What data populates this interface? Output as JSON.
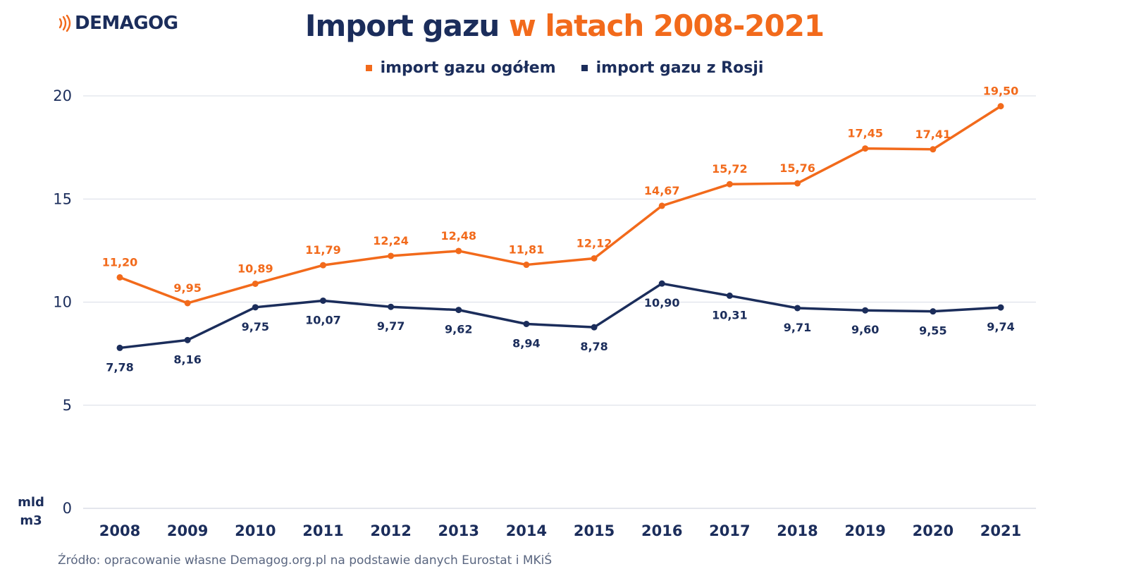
{
  "brand": {
    "logo_text": "DEMAGOG",
    "logo_icon": "broadcast-waves-icon",
    "logo_color": "#1b2d5b",
    "icon_color": "#f26a1b"
  },
  "header": {
    "title_part1": "Import gazu",
    "title_part2": "w latach 2008-2021"
  },
  "colors": {
    "navy": "#1b2d5b",
    "orange": "#f26a1b",
    "grid": "#d8dce6"
  },
  "unit_label": {
    "line1": "mld",
    "line2": "m3"
  },
  "source": "Źródło: opracowanie własne Demagog.org.pl na podstawie danych Eurostat i MKiŚ",
  "chart_data": {
    "type": "line",
    "title": "Import gazu w latach 2008-2021",
    "xlabel": "",
    "ylabel": "mld m3",
    "ylim": [
      0,
      20
    ],
    "yticks": [
      0,
      5,
      10,
      15,
      20
    ],
    "grid": true,
    "legend_position": "top-center",
    "x": [
      "2008",
      "2009",
      "2010",
      "2011",
      "2012",
      "2013",
      "2014",
      "2015",
      "2016",
      "2017",
      "2018",
      "2019",
      "2020",
      "2021"
    ],
    "series": [
      {
        "name": "import gazu ogółem",
        "color": "#f26a1b",
        "values": [
          11.2,
          9.95,
          10.89,
          11.79,
          12.24,
          12.48,
          11.81,
          12.12,
          14.67,
          15.72,
          15.76,
          17.45,
          17.41,
          19.5
        ],
        "labels": [
          "11,20",
          "9,95",
          "10,89",
          "11,79",
          "12,24",
          "12,48",
          "11,81",
          "12,12",
          "14,67",
          "15,72",
          "15,76",
          "17,45",
          "17,41",
          "19,50"
        ],
        "label_position": "above"
      },
      {
        "name": "import gazu z Rosji",
        "color": "#1b2d5b",
        "values": [
          7.78,
          8.16,
          9.75,
          10.07,
          9.77,
          9.62,
          8.94,
          8.78,
          10.9,
          10.31,
          9.71,
          9.6,
          9.55,
          9.74
        ],
        "labels": [
          "7,78",
          "8,16",
          "9,75",
          "10,07",
          "9,77",
          "9,62",
          "8,94",
          "8,78",
          "10,90",
          "10,31",
          "9,71",
          "9,60",
          "9,55",
          "9,74"
        ],
        "label_position": "below"
      }
    ]
  }
}
